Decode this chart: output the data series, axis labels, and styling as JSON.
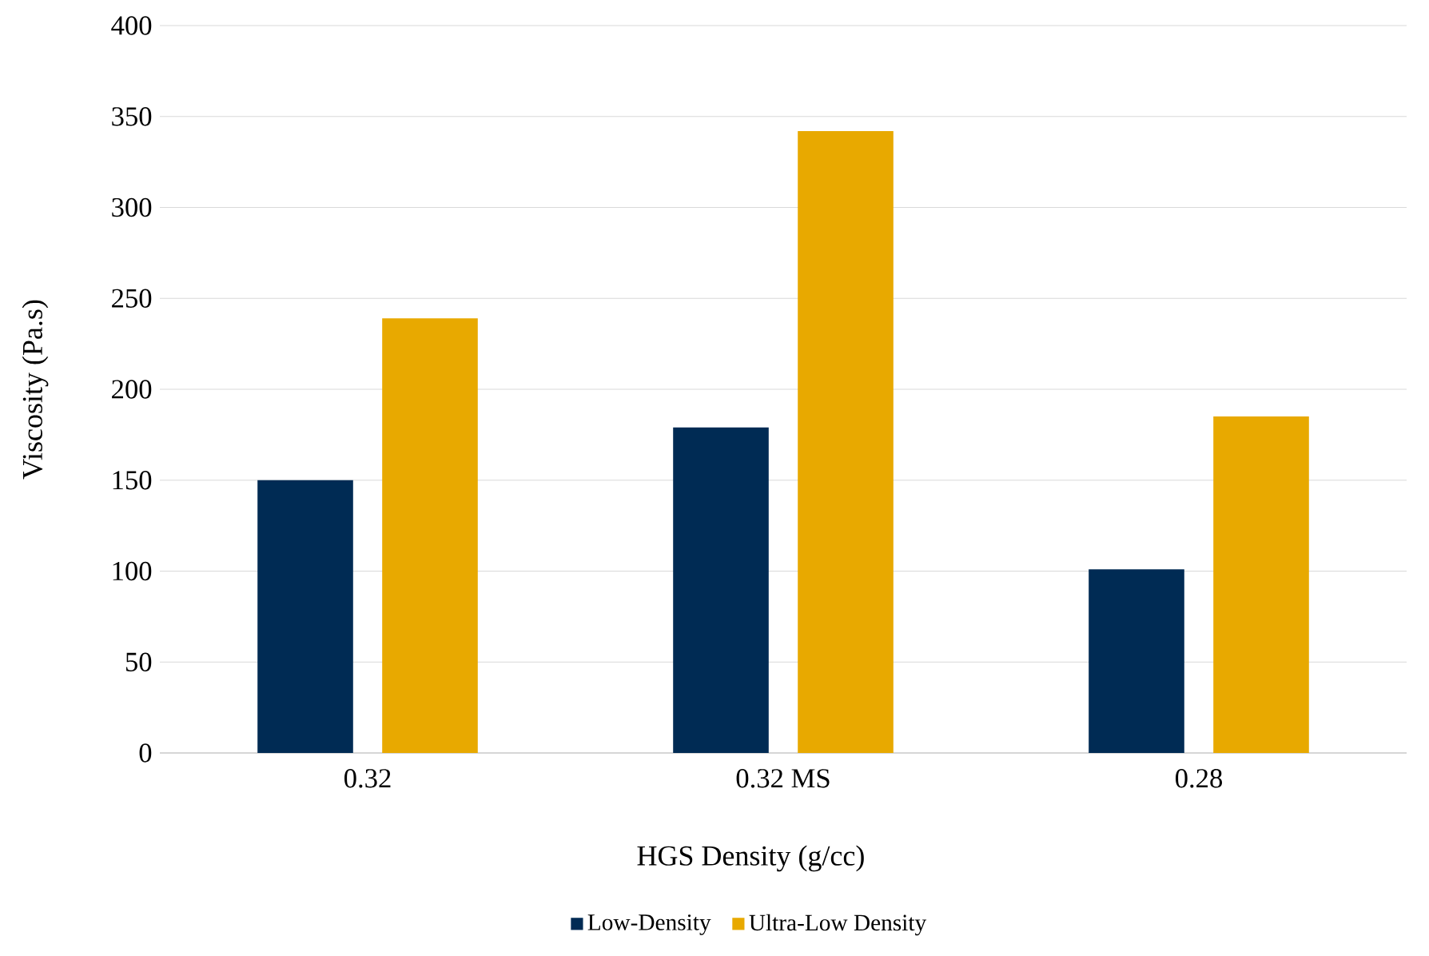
{
  "chart_data": {
    "type": "bar",
    "xlabel": "HGS Density (g/cc)",
    "ylabel": "Viscosity (Pa.s)",
    "categories": [
      "0.32",
      "0.32 MS",
      "0.28"
    ],
    "series": [
      {
        "name": "Low-Density",
        "color": "#002b54",
        "values": [
          150,
          179,
          101
        ]
      },
      {
        "name": "Ultra-Low Density",
        "color": "#e8a900",
        "values": [
          239,
          342,
          185
        ]
      }
    ],
    "ylim": [
      0,
      400
    ],
    "yticks": [
      0,
      50,
      100,
      150,
      200,
      250,
      300,
      350,
      400
    ],
    "grid": "y",
    "legend": "bottom"
  }
}
